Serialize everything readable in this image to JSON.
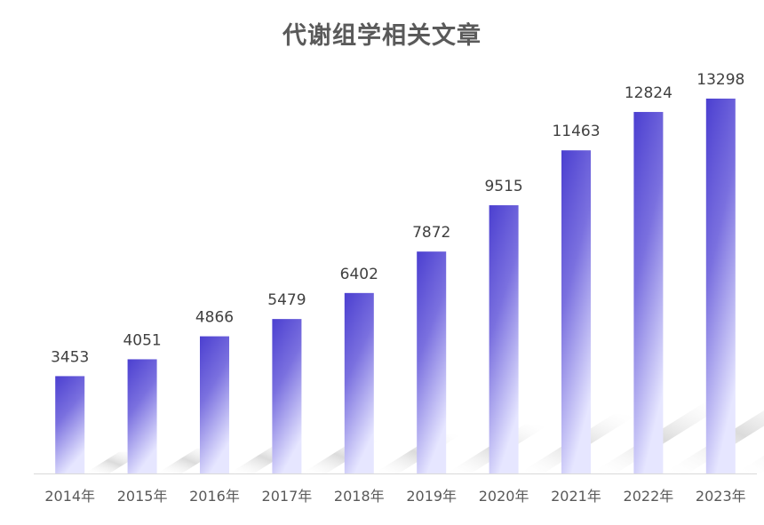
{
  "chart_data": {
    "type": "bar",
    "title": "代谢组学相关文章",
    "categories": [
      "2014年",
      "2015年",
      "2016年",
      "2017年",
      "2018年",
      "2019年",
      "2020年",
      "2021年",
      "2022年",
      "2023年"
    ],
    "values": [
      3453,
      4051,
      4866,
      5479,
      6402,
      7872,
      9515,
      11463,
      12824,
      13298
    ],
    "xlabel": "",
    "ylabel": "",
    "ylim": [
      0,
      14000
    ],
    "grid": false,
    "legend": "none",
    "data_labels": true,
    "colors": {
      "bar_top": "#4b3fd0",
      "bar_bottom": "#e6e6ff",
      "shadow": "#d9d9d9",
      "axis": "#d9d9d9",
      "title": "#5a5a5a"
    }
  }
}
